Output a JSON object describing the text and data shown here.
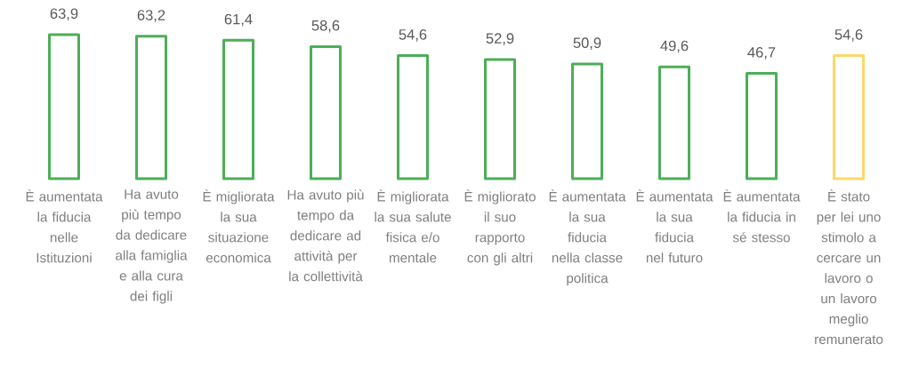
{
  "chart_data": {
    "type": "bar",
    "categories": [
      "È aumentata la fiducia nelle Istituzioni",
      "Ha avuto più tempo da dedicare alla famiglia e alla cura dei figli",
      "È migliorata la sua situazione economica",
      "Ha avuto più tempo da dedicare ad attività per la collettività",
      "È migliorata la sua salute fisica e/o mentale",
      "È migliorato il suo rapporto con gli altri",
      "È aumentata la sua fiducia nella classe politica",
      "È aumentata la sua fiducia nel futuro",
      "È aumentata la fiducia in sé stesso",
      "È stato per lei uno stimolo a cercare un lavoro o un lavoro meglio remunerato"
    ],
    "values": [
      63.9,
      63.2,
      61.4,
      58.6,
      54.6,
      52.9,
      50.9,
      49.6,
      46.7,
      54.6
    ],
    "value_labels": [
      "63,9",
      "63,2",
      "61,4",
      "58,6",
      "54,6",
      "52,9",
      "50,9",
      "49,6",
      "46,7",
      "54,6"
    ],
    "colors": [
      "#4cae58",
      "#4cae58",
      "#4cae58",
      "#4cae58",
      "#4cae58",
      "#4cae58",
      "#4cae58",
      "#4cae58",
      "#4cae58",
      "#fdd868"
    ]
  }
}
